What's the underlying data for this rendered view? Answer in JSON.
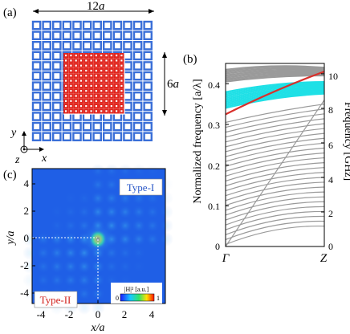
{
  "panels": {
    "a": {
      "label": "(a)",
      "width_label": "12",
      "width_unit": "a",
      "height_label": "6",
      "height_unit": "a",
      "axis_y": "y",
      "axis_x": "x",
      "axis_z": "z",
      "outer_grid_cells": 12,
      "inner_grid_cells": 6,
      "outer_color": "#3a6fd8",
      "inner_color": "#e0261f"
    },
    "b": {
      "label": "(b)",
      "ylabel_left": "Normalized frequency [a/λ]",
      "ylabel_right": "Frequency [GHz]",
      "xticks": [
        "Γ",
        "Z"
      ],
      "yticks_left": [
        "0",
        "0.1",
        "0.2",
        "0.3",
        "0.4"
      ],
      "yticks_right": [
        "0",
        "2",
        "4",
        "6",
        "8",
        "10"
      ],
      "band_colors": {
        "bulk": "#9a9a9a",
        "edge": "#1fe0e6",
        "defect": "#d9302b"
      }
    },
    "c": {
      "label": "(c)",
      "xlabel": "x/a",
      "ylabel": "y/a",
      "xticks": [
        "-4",
        "-2",
        "0",
        "2",
        "4"
      ],
      "yticks": [
        "4",
        "2",
        "0",
        "-2",
        "-4"
      ],
      "region_top": "Type-I",
      "region_bottom": "Type-II",
      "colorbar_title": "|H|² [a.u.]",
      "colorbar_min": "0",
      "colorbar_max": "1"
    }
  },
  "chart_data": {
    "type": "line",
    "xlabel": "",
    "ylabel": "Normalized frequency [a/λ]",
    "categories": [
      "Γ",
      "Z"
    ],
    "ylim": [
      0,
      0.45
    ],
    "series": [
      {
        "values": [
          0.325,
          0.43
        ]
      },
      {
        "values": [
          0.3,
          0.37
        ]
      },
      {
        "values": [
          0.25,
          0.33
        ]
      }
    ]
  }
}
